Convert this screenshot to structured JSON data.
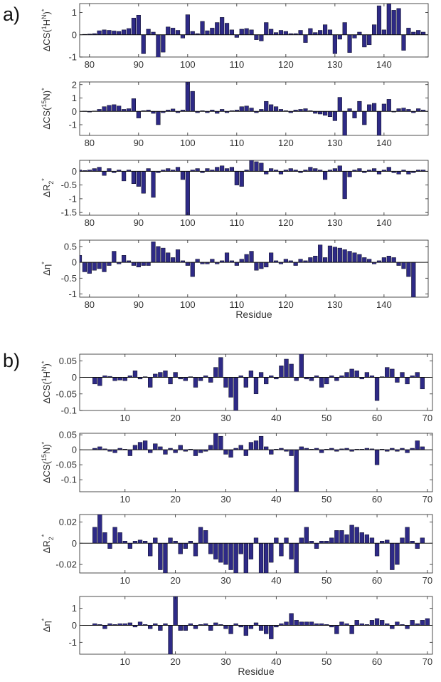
{
  "panel_labels": {
    "a": "a)",
    "b": "b)"
  },
  "colors": {
    "bar": "#2e2a86",
    "bar_edge": "#0a0a1e",
    "axis": "#222222",
    "text": "#333333"
  },
  "chart_data": [
    {
      "type": "bar",
      "panel": "a",
      "ylabel_main": "ΔCS(",
      "ylabel_sup": "1",
      "ylabel_mid": "H",
      "ylabel_sup2": "N",
      "ylabel_end": ")",
      "ylabel_star": "*",
      "xlabel": "",
      "xlim": [
        78,
        149
      ],
      "ylim": [
        -1,
        1.4
      ],
      "xticks": [
        80,
        90,
        100,
        110,
        120,
        130,
        140
      ],
      "yticks": [
        -1,
        0,
        1
      ],
      "x": [
        78,
        79,
        80,
        81,
        82,
        83,
        84,
        85,
        86,
        87,
        88,
        89,
        90,
        91,
        92,
        93,
        94,
        95,
        96,
        97,
        98,
        99,
        100,
        101,
        102,
        103,
        104,
        105,
        106,
        107,
        108,
        109,
        110,
        111,
        112,
        113,
        114,
        115,
        116,
        117,
        118,
        119,
        120,
        121,
        122,
        123,
        124,
        125,
        126,
        127,
        128,
        129,
        130,
        131,
        132,
        133,
        134,
        135,
        136,
        137,
        138,
        139,
        140,
        141,
        142,
        143,
        144,
        145,
        146,
        147,
        148
      ],
      "values": [
        0,
        0.02,
        0.03,
        0.05,
        0.18,
        0.22,
        0.2,
        0.17,
        0.15,
        0.22,
        0.28,
        0.75,
        0.88,
        -0.85,
        0.25,
        0.12,
        -1.1,
        -0.78,
        0.35,
        0.3,
        0.2,
        -0.15,
        0.9,
        0.15,
        0.05,
        0.6,
        0.18,
        0.3,
        0.55,
        0.78,
        0.52,
        0.22,
        -0.12,
        0.25,
        0.28,
        0.22,
        -0.22,
        -0.28,
        0.55,
        0.25,
        0.1,
        0.2,
        0.15,
        0.05,
        0.05,
        0.2,
        -0.35,
        0.28,
        0.1,
        0.2,
        0.45,
        0.22,
        -0.85,
        -0.2,
        0.55,
        -0.8,
        -0.15,
        0.12,
        -0.55,
        -0.45,
        0.45,
        1.3,
        0.22,
        1.38,
        1.1,
        1.18,
        -0.7,
        0.3,
        0.12,
        0.2,
        0.12
      ]
    },
    {
      "type": "bar",
      "panel": "a",
      "ylabel_main": "ΔCS(",
      "ylabel_sup": "15",
      "ylabel_mid": "N",
      "ylabel_sup2": "",
      "ylabel_end": ")",
      "ylabel_star": "*",
      "xlabel": "",
      "xlim": [
        78,
        149
      ],
      "ylim": [
        -1.8,
        2.2
      ],
      "xticks": [
        80,
        90,
        100,
        110,
        120,
        130,
        140
      ],
      "yticks": [
        -1,
        0,
        1,
        2
      ],
      "x": [
        78,
        79,
        80,
        81,
        82,
        83,
        84,
        85,
        86,
        87,
        88,
        89,
        90,
        91,
        92,
        93,
        94,
        95,
        96,
        97,
        98,
        99,
        100,
        101,
        102,
        103,
        104,
        105,
        106,
        107,
        108,
        109,
        110,
        111,
        112,
        113,
        114,
        115,
        116,
        117,
        118,
        119,
        120,
        121,
        122,
        123,
        124,
        125,
        126,
        127,
        128,
        129,
        130,
        131,
        132,
        133,
        134,
        135,
        136,
        137,
        138,
        139,
        140,
        141,
        142,
        143,
        144,
        145,
        146,
        147,
        148
      ],
      "values": [
        0,
        0.02,
        -0.05,
        0.03,
        0.15,
        0.35,
        0.45,
        0.5,
        0.4,
        0.15,
        0.2,
        0.95,
        -0.5,
        0.05,
        0.1,
        -0.15,
        -1.0,
        -0.1,
        0.1,
        0.18,
        -0.1,
        0.1,
        2.2,
        1.5,
        -0.1,
        0.05,
        -0.1,
        0.1,
        -0.15,
        0.15,
        -0.1,
        0.05,
        0.1,
        0.35,
        0.4,
        0.25,
        -0.1,
        0.15,
        0.75,
        0.5,
        0.35,
        0.15,
        0.05,
        -0.1,
        0.1,
        0.15,
        0.2,
        0.05,
        -0.15,
        -0.2,
        -0.3,
        -0.4,
        -0.7,
        1.05,
        -1.8,
        0.2,
        -0.5,
        0.75,
        -1.0,
        0.5,
        0.6,
        -1.8,
        0.55,
        0.9,
        -0.05,
        0.2,
        0.25,
        0.15,
        -0.1,
        0.2,
        0.1
      ]
    },
    {
      "type": "bar",
      "panel": "a",
      "ylabel_main": "ΔR",
      "ylabel_sub": "2",
      "ylabel_star": "*",
      "xlabel": "",
      "xlim": [
        78,
        149
      ],
      "ylim": [
        -1.6,
        0.4
      ],
      "xticks": [
        80,
        90,
        100,
        110,
        120,
        130,
        140
      ],
      "yticks": [
        -1.5,
        -1,
        -0.5,
        0
      ],
      "x": [
        78,
        79,
        80,
        81,
        82,
        83,
        84,
        85,
        86,
        87,
        88,
        89,
        90,
        91,
        92,
        93,
        94,
        95,
        96,
        97,
        98,
        99,
        100,
        101,
        102,
        103,
        104,
        105,
        106,
        107,
        108,
        109,
        110,
        111,
        112,
        113,
        114,
        115,
        116,
        117,
        118,
        119,
        120,
        121,
        122,
        123,
        124,
        125,
        126,
        127,
        128,
        129,
        130,
        131,
        132,
        133,
        134,
        135,
        136,
        137,
        138,
        139,
        140,
        141,
        142,
        143,
        144,
        145,
        146,
        147,
        148
      ],
      "values": [
        0.05,
        0.03,
        0.05,
        0.1,
        0.15,
        -0.15,
        0.1,
        -0.05,
        0.05,
        -0.35,
        0.05,
        -0.45,
        -0.55,
        -0.8,
        0.1,
        -0.95,
        -0.05,
        0.05,
        0.1,
        0.05,
        0.15,
        -0.3,
        -1.6,
        0.05,
        0.1,
        -0.05,
        0.1,
        0.05,
        0.15,
        0.2,
        0.1,
        0.15,
        -0.5,
        -0.55,
        0.05,
        0.4,
        0.35,
        0.3,
        -0.1,
        0.1,
        0.05,
        -0.1,
        0.05,
        0.1,
        0.05,
        -0.05,
        0.05,
        0.15,
        0.1,
        0.05,
        -0.3,
        0.05,
        0.1,
        0.2,
        -1.0,
        -0.2,
        0.05,
        0.1,
        -0.05,
        0.05,
        0.1,
        -0.1,
        0.05,
        0.15,
        -0.05,
        -0.1,
        0.05,
        -0.1,
        -0.05,
        0.05,
        0.05
      ]
    },
    {
      "type": "bar",
      "panel": "a",
      "ylabel_main": "Δη",
      "ylabel_star": "*",
      "xlabel": "Residue",
      "xlim": [
        78,
        149
      ],
      "ylim": [
        -1.1,
        0.7
      ],
      "xticks": [
        80,
        90,
        100,
        110,
        120,
        130,
        140
      ],
      "yticks": [
        -1,
        -0.5,
        0,
        0.5
      ],
      "x": [
        78,
        79,
        80,
        81,
        82,
        83,
        84,
        85,
        86,
        87,
        88,
        89,
        90,
        91,
        92,
        93,
        94,
        95,
        96,
        97,
        98,
        99,
        100,
        101,
        102,
        103,
        104,
        105,
        106,
        107,
        108,
        109,
        110,
        111,
        112,
        113,
        114,
        115,
        116,
        117,
        118,
        119,
        120,
        121,
        122,
        123,
        124,
        125,
        126,
        127,
        128,
        129,
        130,
        131,
        132,
        133,
        134,
        135,
        136,
        137,
        138,
        139,
        140,
        141,
        142,
        143,
        144,
        145,
        146,
        147,
        148
      ],
      "values": [
        0.22,
        -0.3,
        -0.35,
        -0.25,
        -0.2,
        -0.3,
        -0.1,
        0.35,
        -0.05,
        0.22,
        0.05,
        -0.1,
        -0.15,
        -0.1,
        -0.1,
        0.65,
        0.5,
        0.45,
        0.3,
        0.15,
        0.4,
        0.05,
        -0.1,
        -0.45,
        0.1,
        -0.05,
        -0.05,
        0.1,
        -0.05,
        0.05,
        0.3,
        0.05,
        -0.1,
        0.1,
        0.25,
        0.35,
        -0.25,
        -0.2,
        -0.15,
        0.3,
        0.05,
        -0.05,
        0.1,
        0.05,
        -0.1,
        0.1,
        0.05,
        0.15,
        0.2,
        0.55,
        0.15,
        0.52,
        0.48,
        0.45,
        0.4,
        0.35,
        0.3,
        0.25,
        0.15,
        0.1,
        -0.05,
        0.05,
        0.15,
        0.2,
        0.15,
        -0.1,
        -0.2,
        -0.45,
        -1.1,
        0,
        0
      ]
    },
    {
      "type": "bar",
      "panel": "b",
      "ylabel_main": "ΔCS(",
      "ylabel_sup": "1",
      "ylabel_mid": "H",
      "ylabel_sup2": "N",
      "ylabel_end": ")",
      "ylabel_star": "*",
      "xlabel": "",
      "xlim": [
        1,
        71
      ],
      "ylim": [
        -0.1,
        0.07
      ],
      "xticks": [
        10,
        20,
        30,
        40,
        50,
        60,
        70
      ],
      "yticks": [
        -0.1,
        -0.05,
        0,
        0.05
      ],
      "x": [
        1,
        2,
        3,
        4,
        5,
        6,
        7,
        8,
        9,
        10,
        11,
        12,
        13,
        14,
        15,
        16,
        17,
        18,
        19,
        20,
        21,
        22,
        23,
        24,
        25,
        26,
        27,
        28,
        29,
        30,
        31,
        32,
        33,
        34,
        35,
        36,
        37,
        38,
        39,
        40,
        41,
        42,
        43,
        44,
        45,
        46,
        47,
        48,
        49,
        50,
        51,
        52,
        53,
        54,
        55,
        56,
        57,
        58,
        59,
        60,
        61,
        62,
        63,
        64,
        65,
        66,
        67,
        68,
        69,
        70
      ],
      "values": [
        0,
        0,
        0,
        -0.02,
        -0.025,
        0.005,
        0.003,
        -0.01,
        -0.008,
        -0.01,
        0.005,
        0.02,
        -0.005,
        0.002,
        -0.03,
        0.01,
        0.015,
        0.02,
        -0.02,
        0.015,
        -0.005,
        -0.01,
        0.002,
        -0.03,
        -0.01,
        0.005,
        -0.015,
        0.03,
        0.06,
        -0.03,
        -0.06,
        -0.1,
        0.005,
        -0.03,
        0.02,
        -0.05,
        0.015,
        -0.02,
        0.005,
        -0.005,
        0.035,
        0.055,
        0.04,
        -0.01,
        0.075,
        -0.005,
        -0.01,
        0.005,
        -0.03,
        -0.02,
        0.005,
        -0.01,
        0.005,
        0.015,
        0.025,
        0.02,
        -0.005,
        0.015,
        0.005,
        -0.07,
        0.002,
        0.03,
        0.025,
        -0.015,
        0.015,
        -0.02,
        0.005,
        0.015,
        -0.035,
        0
      ]
    },
    {
      "type": "bar",
      "panel": "b",
      "ylabel_main": "ΔCS(",
      "ylabel_sup": "15",
      "ylabel_mid": "N",
      "ylabel_sup2": "",
      "ylabel_end": ")",
      "ylabel_star": "*",
      "xlabel": "",
      "xlim": [
        1,
        71
      ],
      "ylim": [
        -0.14,
        0.055
      ],
      "xticks": [
        10,
        20,
        30,
        40,
        50,
        60,
        70
      ],
      "yticks": [
        -0.1,
        -0.05,
        0,
        0.05
      ],
      "x": [
        1,
        2,
        3,
        4,
        5,
        6,
        7,
        8,
        9,
        10,
        11,
        12,
        13,
        14,
        15,
        16,
        17,
        18,
        19,
        20,
        21,
        22,
        23,
        24,
        25,
        26,
        27,
        28,
        29,
        30,
        31,
        32,
        33,
        34,
        35,
        36,
        37,
        38,
        39,
        40,
        41,
        42,
        43,
        44,
        45,
        46,
        47,
        48,
        49,
        50,
        51,
        52,
        53,
        54,
        55,
        56,
        57,
        58,
        59,
        60,
        61,
        62,
        63,
        64,
        65,
        66,
        67,
        68,
        69,
        70
      ],
      "values": [
        0,
        0,
        0,
        0.005,
        0.01,
        0.003,
        -0.005,
        -0.01,
        0.005,
        0.002,
        -0.02,
        0.015,
        0.025,
        0.03,
        -0.01,
        0.02,
        0.01,
        -0.015,
        0.005,
        -0.01,
        0.015,
        -0.005,
        0.002,
        -0.02,
        -0.01,
        -0.005,
        0.015,
        0.055,
        0.045,
        -0.015,
        -0.025,
        0.005,
        0.015,
        -0.02,
        0.025,
        0.03,
        0.045,
        0.01,
        -0.015,
        0.002,
        0.005,
        -0.005,
        -0.02,
        -0.14,
        0.01,
        0.005,
        0.002,
        0.005,
        -0.01,
        0.002,
        0.005,
        -0.005,
        0.003,
        0.005,
        -0.005,
        0.002,
        0.002,
        0.005,
        0.003,
        -0.05,
        0.002,
        -0.005,
        0.005,
        -0.005,
        0.005,
        -0.01,
        0.005,
        0.03,
        0.01,
        0
      ]
    },
    {
      "type": "bar",
      "panel": "b",
      "ylabel_main": "ΔR",
      "ylabel_sub": "2",
      "ylabel_star": "*",
      "xlabel": "",
      "xlim": [
        1,
        71
      ],
      "ylim": [
        -0.028,
        0.027
      ],
      "xticks": [
        10,
        20,
        30,
        40,
        50,
        60,
        70
      ],
      "yticks": [
        -0.02,
        0,
        0.02
      ],
      "x": [
        1,
        2,
        3,
        4,
        5,
        6,
        7,
        8,
        9,
        10,
        11,
        12,
        13,
        14,
        15,
        16,
        17,
        18,
        19,
        20,
        21,
        22,
        23,
        24,
        25,
        26,
        27,
        28,
        29,
        30,
        31,
        32,
        33,
        34,
        35,
        36,
        37,
        38,
        39,
        40,
        41,
        42,
        43,
        44,
        45,
        46,
        47,
        48,
        49,
        50,
        51,
        52,
        53,
        54,
        55,
        56,
        57,
        58,
        59,
        60,
        61,
        62,
        63,
        64,
        65,
        66,
        67,
        68,
        69,
        70
      ],
      "values": [
        0,
        0,
        0,
        0.015,
        0.027,
        0.01,
        -0.005,
        0.015,
        0.01,
        0.002,
        -0.005,
        0.002,
        0.003,
        0.002,
        -0.012,
        0.005,
        -0.025,
        -0.028,
        0.005,
        0.002,
        -0.01,
        -0.005,
        0.002,
        -0.012,
        0.015,
        0.012,
        -0.01,
        -0.015,
        -0.018,
        -0.02,
        -0.025,
        -0.028,
        -0.01,
        -0.028,
        -0.015,
        0.005,
        -0.028,
        -0.028,
        -0.018,
        0.005,
        -0.012,
        0.005,
        -0.015,
        -0.028,
        0.005,
        0.015,
        0.002,
        -0.005,
        0.002,
        0.002,
        0.005,
        0.012,
        0.012,
        0.008,
        0.017,
        0.015,
        0.01,
        0.008,
        0.005,
        -0.012,
        0.002,
        0.003,
        -0.025,
        -0.02,
        0.005,
        0.015,
        0.002,
        -0.005,
        0.005,
        0
      ]
    },
    {
      "type": "bar",
      "panel": "b",
      "ylabel_main": "Δη",
      "ylabel_star": "*",
      "xlabel": "Residue",
      "xlim": [
        1,
        71
      ],
      "ylim": [
        -1.7,
        1.7
      ],
      "xticks": [
        10,
        20,
        30,
        40,
        50,
        60,
        70
      ],
      "yticks": [
        -1,
        0,
        1
      ],
      "x": [
        1,
        2,
        3,
        4,
        5,
        6,
        7,
        8,
        9,
        10,
        11,
        12,
        13,
        14,
        15,
        16,
        17,
        18,
        19,
        20,
        21,
        22,
        23,
        24,
        25,
        26,
        27,
        28,
        29,
        30,
        31,
        32,
        33,
        34,
        35,
        36,
        37,
        38,
        39,
        40,
        41,
        42,
        43,
        44,
        45,
        46,
        47,
        48,
        49,
        50,
        51,
        52,
        53,
        54,
        55,
        56,
        57,
        58,
        59,
        60,
        61,
        62,
        63,
        64,
        65,
        66,
        67,
        68,
        69,
        70
      ],
      "values": [
        0,
        0,
        0,
        0.1,
        0.05,
        -0.2,
        0.1,
        0.05,
        0.1,
        0.1,
        0.15,
        -0.1,
        0.2,
        0.05,
        -0.2,
        0.1,
        -0.3,
        0.1,
        -1.7,
        1.7,
        -0.3,
        -0.3,
        0.1,
        -0.2,
        0.05,
        0.1,
        -0.3,
        0.15,
        0.05,
        -0.2,
        -0.5,
        0.1,
        -0.1,
        -0.6,
        -0.2,
        0.15,
        -0.3,
        -0.5,
        -0.8,
        -0.1,
        0.1,
        0.2,
        0.7,
        0.3,
        0.2,
        0.2,
        0.2,
        0.1,
        0.1,
        0.05,
        -0.1,
        -0.5,
        0.2,
        0.1,
        -0.5,
        0.3,
        0.1,
        0.05,
        0.3,
        0.4,
        0.3,
        0.1,
        -0.2,
        0.2,
        0.05,
        -0.2,
        0.3,
        0.1,
        0.3,
        0.4
      ]
    }
  ]
}
